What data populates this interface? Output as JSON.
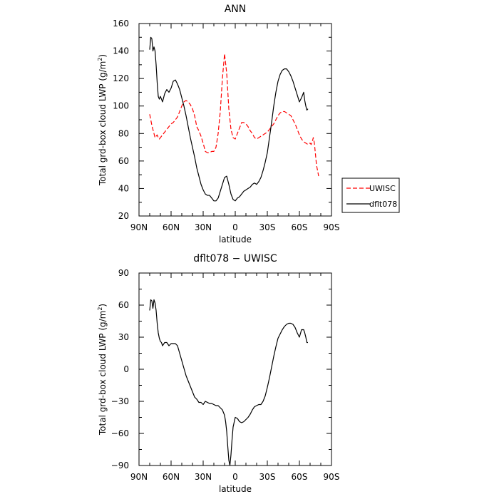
{
  "chart_data": [
    {
      "type": "line",
      "title": "ANN",
      "xlabel": "latitude",
      "ylabel": "Total grd-box cloud LWP (g/m",
      "ylabel_sup": "2",
      "ylabel_end": ")",
      "xlim": [
        90,
        -90
      ],
      "ylim": [
        20,
        160
      ],
      "xticks": [
        90,
        60,
        30,
        0,
        -30,
        -60,
        -90
      ],
      "xtick_labels": [
        "90N",
        "60N",
        "30N",
        "0",
        "30S",
        "60S",
        "90S"
      ],
      "yticks": [
        20,
        40,
        60,
        80,
        100,
        120,
        140,
        160
      ],
      "ytick_labels": [
        "20",
        "40",
        "60",
        "80",
        "100",
        "120",
        "140",
        "160"
      ],
      "legend": "outside-right",
      "series": [
        {
          "name": "UWISC",
          "color": "#ff0000",
          "dash": "dashed",
          "x": [
            80,
            79,
            78,
            77,
            76,
            75,
            74,
            73,
            72,
            71,
            70,
            69,
            68,
            67,
            66,
            65,
            64,
            62,
            60,
            58,
            56,
            54,
            52,
            50,
            48,
            46,
            44,
            42,
            40,
            38,
            36,
            34,
            32,
            30,
            28,
            26,
            24,
            22,
            20,
            18,
            16,
            14,
            12,
            10,
            8,
            6,
            4,
            2,
            0,
            -2,
            -4,
            -6,
            -8,
            -10,
            -12,
            -14,
            -16,
            -18,
            -20,
            -22,
            -24,
            -26,
            -28,
            -30,
            -32,
            -34,
            -36,
            -38,
            -40,
            -42,
            -44,
            -46,
            -48,
            -50,
            -52,
            -54,
            -56,
            -58,
            -60,
            -62,
            -64,
            -66,
            -68,
            -70,
            -71,
            -72,
            -73,
            -74,
            -75,
            -76,
            -77,
            -78
          ],
          "values": [
            94,
            90,
            86,
            83,
            80,
            77,
            78,
            79,
            77,
            76,
            77,
            78,
            79,
            80,
            81,
            82,
            83,
            85,
            87,
            88,
            90,
            92,
            96,
            100,
            103,
            104,
            103,
            101,
            98,
            93,
            85,
            82,
            78,
            73,
            67,
            66,
            66,
            67,
            67,
            70,
            80,
            96,
            120,
            138,
            124,
            98,
            83,
            77,
            76,
            80,
            84,
            88,
            88,
            87,
            85,
            82,
            80,
            77,
            76,
            77,
            78,
            79,
            80,
            81,
            83,
            85,
            87,
            90,
            93,
            95,
            96,
            96,
            95,
            94,
            93,
            90,
            87,
            83,
            79,
            76,
            74,
            73,
            72,
            73,
            72,
            74,
            77,
            73,
            65,
            57,
            53,
            49
          ]
        },
        {
          "name": "dflt078",
          "color": "#000000",
          "dash": "solid",
          "x": [
            80,
            79,
            78,
            77,
            76,
            75,
            74,
            73,
            72,
            71,
            70,
            68,
            66,
            64,
            62,
            60,
            58,
            56,
            54,
            52,
            50,
            48,
            46,
            44,
            42,
            40,
            38,
            36,
            34,
            32,
            30,
            28,
            26,
            24,
            22,
            20,
            18,
            16,
            14,
            12,
            10,
            8,
            6,
            4,
            2,
            0,
            -2,
            -4,
            -6,
            -8,
            -10,
            -12,
            -14,
            -16,
            -18,
            -20,
            -22,
            -24,
            -26,
            -28,
            -30,
            -32,
            -34,
            -36,
            -38,
            -40,
            -42,
            -44,
            -46,
            -48,
            -50,
            -52,
            -54,
            -56,
            -58,
            -60,
            -62,
            -64,
            -65,
            -66,
            -67,
            -68
          ],
          "values": [
            141,
            150,
            149,
            140,
            143,
            140,
            130,
            117,
            107,
            105,
            107,
            103,
            109,
            112,
            110,
            113,
            118,
            119,
            116,
            112,
            106,
            100,
            93,
            85,
            77,
            70,
            63,
            55,
            49,
            43,
            39,
            36,
            35,
            35,
            33,
            31,
            31,
            33,
            38,
            43,
            48,
            49,
            43,
            36,
            32,
            31,
            33,
            34,
            36,
            38,
            39,
            40,
            41,
            43,
            44,
            43,
            45,
            48,
            53,
            59,
            66,
            77,
            88,
            100,
            110,
            118,
            123,
            126,
            127,
            127,
            125,
            122,
            118,
            113,
            108,
            103,
            106,
            110,
            104,
            100,
            97,
            98
          ]
        }
      ]
    },
    {
      "type": "line",
      "title": "dflt078 − UWISC",
      "xlabel": "latitude",
      "ylabel": "Total grd-box cloud LWP (g/m",
      "ylabel_sup": "2",
      "ylabel_end": ")",
      "xlim": [
        90,
        -90
      ],
      "ylim": [
        -90,
        90
      ],
      "xticks": [
        90,
        60,
        30,
        0,
        -30,
        -60,
        -90
      ],
      "xtick_labels": [
        "90N",
        "60N",
        "30N",
        "0",
        "30S",
        "60S",
        "90S"
      ],
      "yticks": [
        -90,
        -60,
        -30,
        0,
        30,
        60,
        90
      ],
      "ytick_labels": [
        "−90",
        "−60",
        "−30",
        "0",
        "30",
        "60",
        "90"
      ],
      "series": [
        {
          "color": "#000000",
          "dash": "solid",
          "x": [
            80,
            79,
            78,
            77,
            76,
            75,
            74,
            73,
            72,
            71,
            70,
            69,
            68,
            66,
            64,
            62,
            60,
            58,
            56,
            54,
            52,
            50,
            48,
            46,
            44,
            42,
            40,
            38,
            36,
            34,
            32,
            30,
            28,
            26,
            24,
            22,
            20,
            18,
            16,
            14,
            12,
            10,
            9,
            8,
            7,
            6,
            5,
            4,
            3,
            2,
            0,
            -2,
            -4,
            -6,
            -8,
            -10,
            -12,
            -14,
            -16,
            -18,
            -20,
            -22,
            -24,
            -26,
            -28,
            -30,
            -32,
            -34,
            -36,
            -38,
            -40,
            -42,
            -44,
            -46,
            -48,
            -50,
            -52,
            -54,
            -56,
            -58,
            -60,
            -62,
            -64,
            -65,
            -66,
            -67,
            -68
          ],
          "values": [
            55,
            65,
            64,
            57,
            65,
            62,
            55,
            43,
            34,
            29,
            26,
            25,
            22,
            25,
            25,
            22,
            24,
            24,
            24,
            22,
            15,
            8,
            1,
            -6,
            -11,
            -16,
            -21,
            -26,
            -28,
            -31,
            -31,
            -33,
            -30,
            -31,
            -32,
            -32,
            -33,
            -34,
            -34,
            -36,
            -38,
            -43,
            -49,
            -58,
            -72,
            -85,
            -90,
            -80,
            -66,
            -54,
            -45,
            -46,
            -49,
            -50,
            -49,
            -47,
            -45,
            -42,
            -38,
            -35,
            -34,
            -33,
            -33,
            -30,
            -25,
            -17,
            -8,
            2,
            12,
            21,
            29,
            33,
            37,
            40,
            42,
            43,
            43,
            42,
            39,
            34,
            30,
            37,
            37,
            34,
            30,
            25,
            25
          ]
        }
      ]
    }
  ],
  "legend": {
    "items": [
      {
        "label": "UWISC",
        "color": "#ff0000",
        "dash": "dashed"
      },
      {
        "label": "dflt078",
        "color": "#000000",
        "dash": "solid"
      }
    ]
  }
}
